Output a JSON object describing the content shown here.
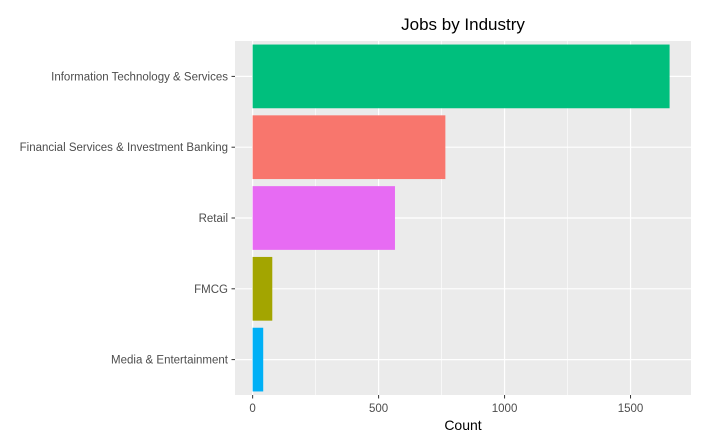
{
  "chart_data": {
    "type": "bar",
    "orientation": "horizontal",
    "title": "Jobs by Industry",
    "xlabel": "Count",
    "ylabel": "",
    "categories": [
      "Information Technology & Services",
      "Financial Services & Investment Banking",
      "Retail",
      "FMCG",
      "Media & Entertainment"
    ],
    "values": [
      1655,
      765,
      565,
      78,
      42
    ],
    "colors": [
      "#00BF7D",
      "#F8766D",
      "#E76BF3",
      "#A3A500",
      "#00B0F6"
    ],
    "xlim": [
      -70,
      1740
    ],
    "xticks": [
      0,
      500,
      1000,
      1500
    ],
    "xtick_labels": [
      "0",
      "500",
      "1000",
      "1500"
    ],
    "grid": true,
    "legend": "none"
  }
}
